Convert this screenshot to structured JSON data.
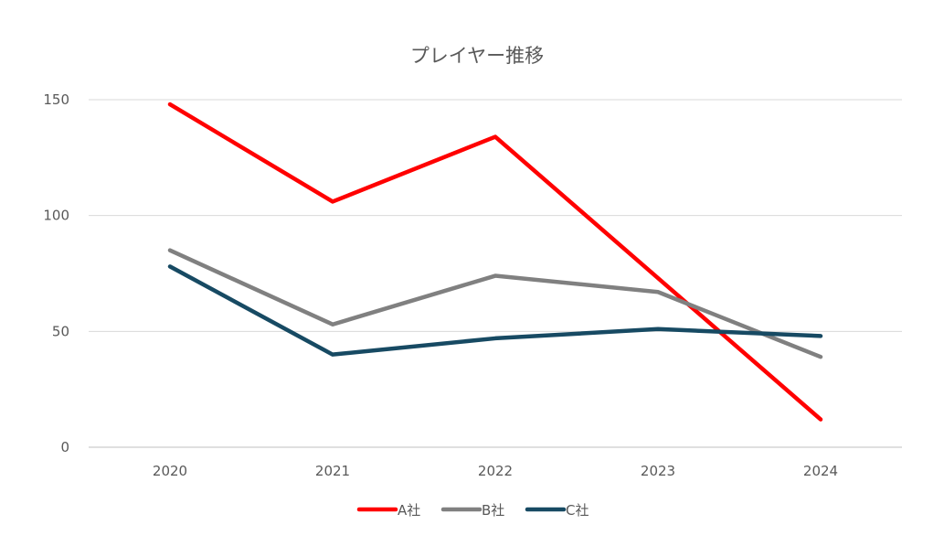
{
  "chart_data": {
    "type": "line",
    "title": "プレイヤー推移",
    "categories": [
      "2020",
      "2021",
      "2022",
      "2023",
      "2024"
    ],
    "y_ticks": [
      "0",
      "50",
      "100",
      "150"
    ],
    "ylim": [
      0,
      150
    ],
    "grid": true,
    "legend_position": "bottom",
    "series": [
      {
        "name": "A社",
        "color": "#ff0000",
        "values": [
          148,
          106,
          134,
          73,
          12
        ]
      },
      {
        "name": "B社",
        "color": "#808080",
        "values": [
          85,
          53,
          74,
          67,
          39
        ]
      },
      {
        "name": "C社",
        "color": "#174a63",
        "values": [
          78,
          40,
          47,
          51,
          48
        ]
      }
    ]
  }
}
